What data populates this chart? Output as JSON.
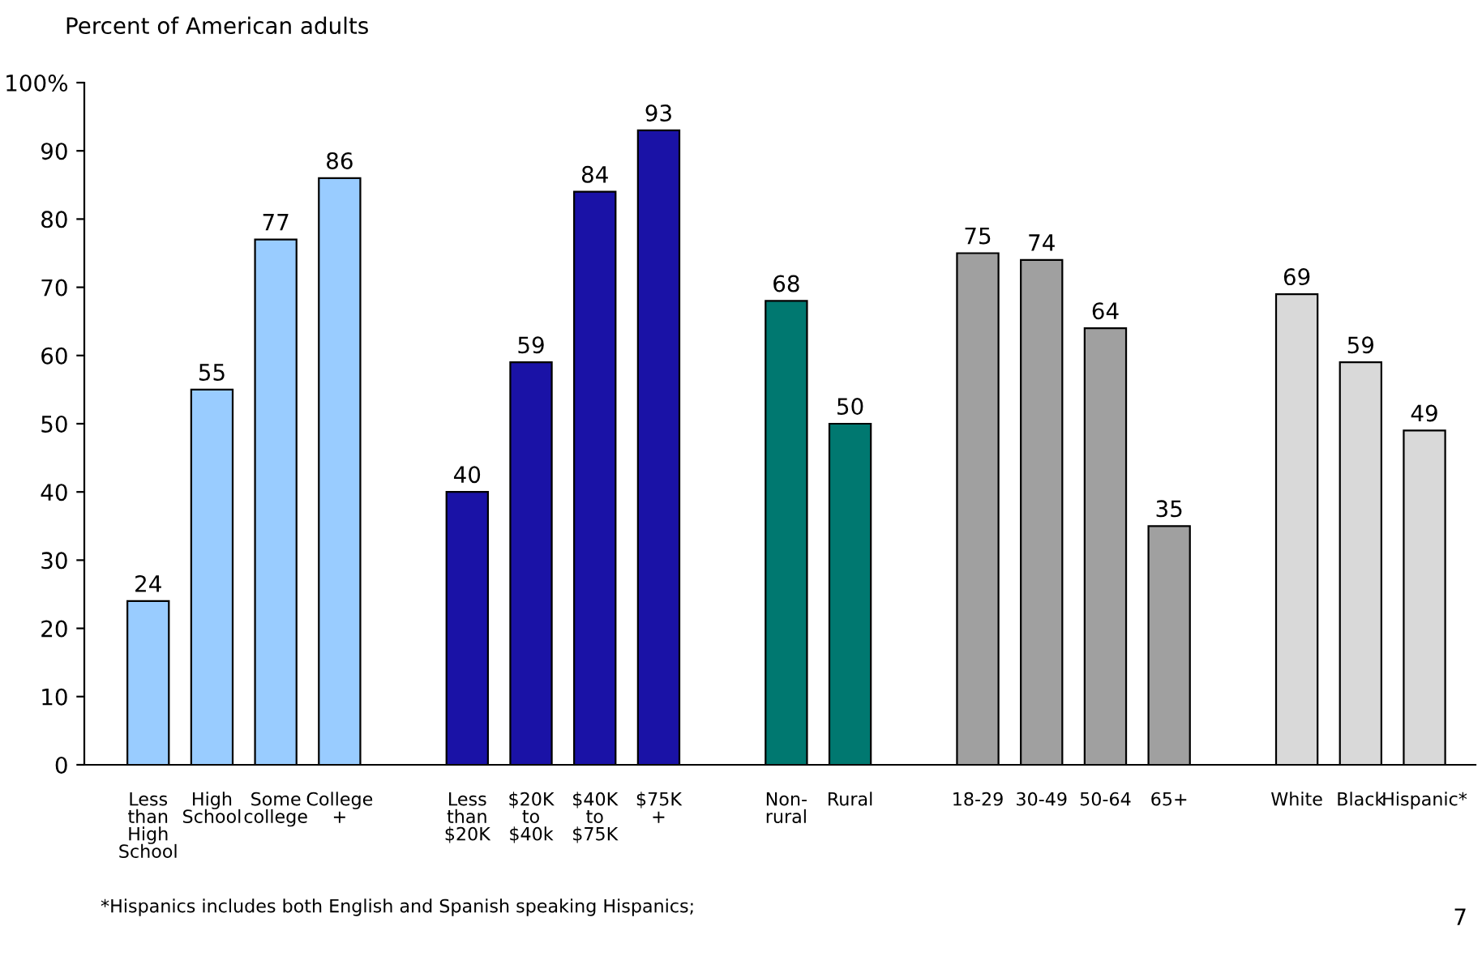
{
  "chart_data": {
    "type": "bar",
    "ylabel": "Percent of American adults",
    "categories": [
      "Less\nthan\nHigh\nSchool",
      "High\nSchool",
      "Some\ncollege",
      "College\n+",
      null,
      "Less\nthan\n$20K",
      "$20K\nto\n$40k",
      "$40K\nto\n$75K",
      "$75K\n+",
      null,
      "Non-\nrural",
      "Rural",
      null,
      "18-29",
      "30-49",
      "50-64",
      "65+",
      null,
      "White",
      "Black",
      "Hispanic*"
    ],
    "values": [
      24,
      55,
      77,
      86,
      null,
      40,
      59,
      84,
      93,
      null,
      68,
      50,
      null,
      75,
      74,
      64,
      35,
      null,
      69,
      59,
      49
    ],
    "colors": [
      "#99ccff",
      "#99ccff",
      "#99ccff",
      "#99ccff",
      null,
      "#1a12a6",
      "#1a12a6",
      "#1a12a6",
      "#1a12a6",
      null,
      "#007870",
      "#007870",
      null,
      "#a0a0a0",
      "#a0a0a0",
      "#a0a0a0",
      "#a0a0a0",
      null,
      "#d9d9d9",
      "#d9d9d9",
      "#d9d9d9"
    ],
    "ylim": [
      0,
      100
    ],
    "yticks": [
      0,
      10,
      20,
      30,
      40,
      50,
      60,
      70,
      80,
      90,
      {
        "value": 100,
        "label": "100%"
      }
    ],
    "data_labels": true,
    "grid": false,
    "annotations": [
      "*Hispanics includes both English and Spanish speaking Hispanics;",
      "7"
    ]
  }
}
